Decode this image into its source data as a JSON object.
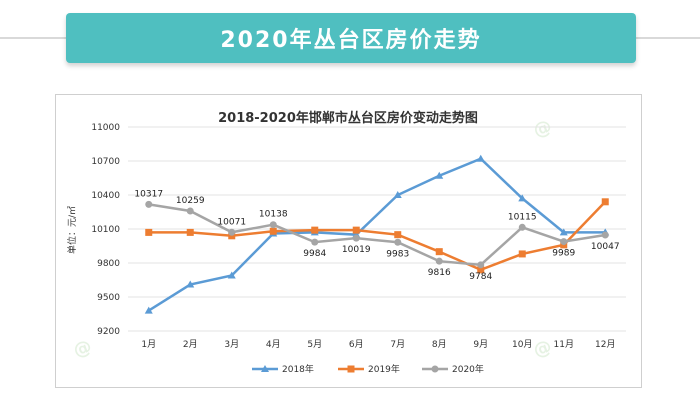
{
  "banner": {
    "title": "2020年丛台区房价走势"
  },
  "colors": {
    "banner": "#4fbfc0",
    "s2018": "#5b9bd5",
    "s2019": "#ed7d31",
    "s2020": "#a5a5a5"
  },
  "chart_data": {
    "type": "line",
    "title": "2018-2020年邯郸市丛台区房价变动走势图",
    "ylabel": "单位：元/㎡",
    "xlabel": "",
    "ylim": [
      9200,
      11000
    ],
    "yticks": [
      9200,
      9500,
      9800,
      10100,
      10400,
      10700,
      11000
    ],
    "categories": [
      "1月",
      "2月",
      "3月",
      "4月",
      "5月",
      "6月",
      "7月",
      "8月",
      "9月",
      "10月",
      "11月",
      "12月"
    ],
    "grid": true,
    "legend_position": "bottom",
    "series": [
      {
        "name": "2018年",
        "color": "#5b9bd5",
        "marker": "triangle",
        "values": [
          9380,
          9610,
          9690,
          10060,
          10070,
          10050,
          10400,
          10570,
          10720,
          10370,
          10070,
          10070
        ],
        "labels": false
      },
      {
        "name": "2019年",
        "color": "#ed7d31",
        "marker": "square",
        "values": [
          10070,
          10070,
          10040,
          10080,
          10090,
          10090,
          10050,
          9900,
          9740,
          9880,
          9960,
          10340
        ],
        "labels": false
      },
      {
        "name": "2020年",
        "color": "#a5a5a5",
        "marker": "circle",
        "values": [
          10317,
          10259,
          10071,
          10138,
          9984,
          10019,
          9983,
          9816,
          9784,
          10115,
          9989,
          10047
        ],
        "labels": true
      }
    ]
  }
}
